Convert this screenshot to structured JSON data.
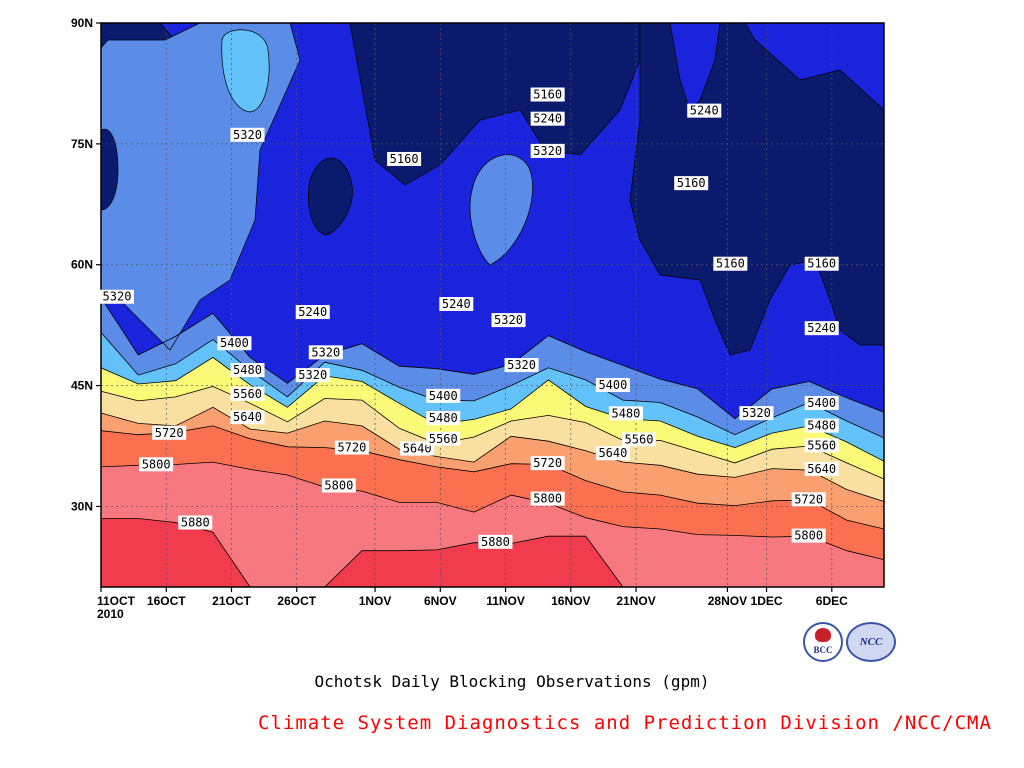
{
  "chart_data": {
    "type": "heatmap",
    "title": "Ochotsk Daily Blocking Observations (gpm)",
    "credit": "Climate System Diagnostics and Prediction Division /NCC/CMA",
    "credit_color": "#ff0000",
    "y_ticks": [
      "30N",
      "45N",
      "60N",
      "75N",
      "90N"
    ],
    "y_tick_values": [
      30,
      45,
      60,
      75,
      90
    ],
    "ylim": [
      20,
      90
    ],
    "x_ticks": [
      "11OCT",
      "16OCT",
      "21OCT",
      "26OCT",
      "1NOV",
      "6NOV",
      "11NOV",
      "16NOV",
      "21NOV",
      "28NOV",
      "1DEC",
      "6DEC"
    ],
    "x_tick_days": [
      0,
      5,
      10,
      15,
      21,
      26,
      31,
      36,
      41,
      48,
      51,
      56
    ],
    "x_year": "2010",
    "xlim_days": [
      0,
      60
    ],
    "contour_levels": [
      5160,
      5240,
      5320,
      5400,
      5480,
      5560,
      5640,
      5720,
      5800,
      5880
    ],
    "fill_colors": [
      "#0c1a6e",
      "#1a24dc",
      "#4a58e8",
      "#5a8ce8",
      "#64c2fa",
      "#fafa78",
      "#fae0a0",
      "#faa070",
      "#fa7050",
      "#f87880",
      "#f03c4c"
    ],
    "latitude_by_level": {
      "5880": [
        28.5,
        28.5,
        28,
        26.8,
        20,
        20,
        20,
        24.5,
        24.5,
        24.6,
        25.5,
        25.4,
        26.3,
        26.3,
        20,
        20,
        20,
        20,
        20,
        20,
        20,
        20
      ],
      "5800": [
        34.9,
        35.1,
        35.2,
        35.5,
        34.6,
        33.9,
        32.4,
        31.9,
        30.5,
        30.5,
        29.3,
        31.4,
        30.4,
        28.6,
        27.5,
        27.2,
        26.5,
        26.4,
        26.2,
        26.3,
        24.5,
        23.4
      ],
      "5720": [
        39.4,
        38.9,
        39.2,
        40,
        38.4,
        37.4,
        37.3,
        36.9,
        35.8,
        34.9,
        34.3,
        35.3,
        35.2,
        33.2,
        31.8,
        31.4,
        30.4,
        30.1,
        30.7,
        30.8,
        28.3,
        27.2
      ],
      "5640": [
        41.6,
        40.3,
        40,
        42.3,
        39.6,
        39.1,
        40.6,
        40,
        37.1,
        36.2,
        35.5,
        38.7,
        38.1,
        36.9,
        35.5,
        35.1,
        34,
        33.6,
        34.7,
        34.5,
        32.1,
        30.6
      ],
      "5560": [
        44.3,
        43.1,
        43.6,
        44.9,
        42.8,
        40.5,
        43.4,
        43.2,
        39.7,
        37.8,
        38.6,
        40.6,
        41.3,
        40.4,
        38.2,
        38.2,
        36.8,
        35.4,
        37.1,
        37.5,
        35.4,
        33.4
      ],
      "5480": [
        47.2,
        45.2,
        45.6,
        48.5,
        45.1,
        42.3,
        46.2,
        45.5,
        42.8,
        40.2,
        40.8,
        42.1,
        45.7,
        42.4,
        40.9,
        40.6,
        38.7,
        37.3,
        39.1,
        40,
        38,
        35.6
      ],
      "5400": [
        51.6,
        46.3,
        47.7,
        50.7,
        46.9,
        43.6,
        47.9,
        46.9,
        44.8,
        43.2,
        43.1,
        45,
        47.2,
        45.7,
        43.2,
        42.9,
        41.1,
        38.9,
        41,
        42.9,
        40.6,
        38.5
      ],
      "5320": [
        55.9,
        48.8,
        51.1,
        54,
        48.5,
        45.3,
        48.8,
        50.2,
        47.4,
        47.1,
        46.4,
        47.6,
        51.2,
        49.2,
        47.5,
        45.8,
        44.6,
        40.9,
        44.6,
        45.5,
        43.5,
        41.7
      ]
    }
  }
}
